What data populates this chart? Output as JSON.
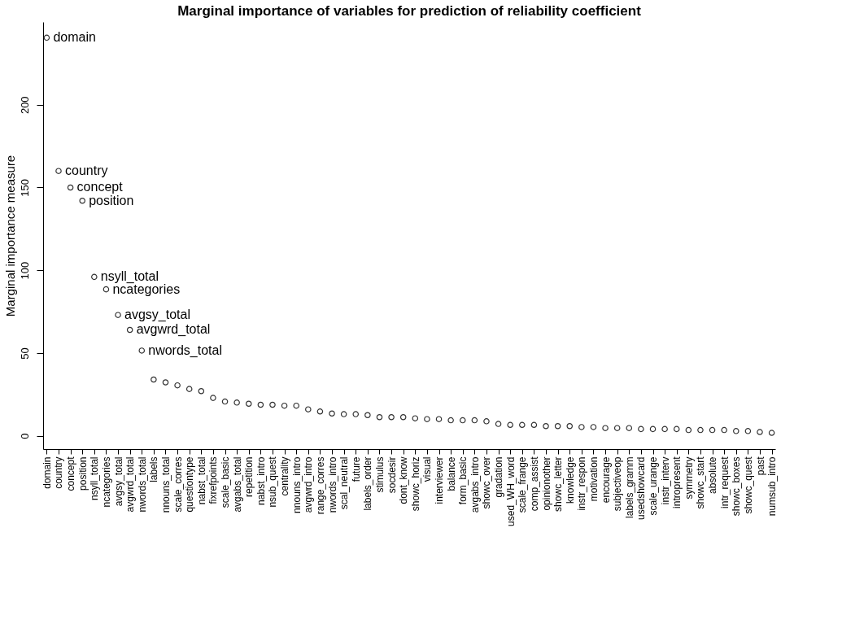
{
  "chart_data": {
    "type": "scatter",
    "title": "Marginal importance of variables for prediction of reliability coefficient",
    "ylabel": "Marginal importance measure",
    "categories": [
      "domain",
      "country",
      "concept",
      "position",
      "nsyll_total",
      "ncategories",
      "avgsy_total",
      "avgwrd_total",
      "nwords_total",
      "labels",
      "nnouns_total",
      "scale_corres",
      "questiontype",
      "nabst_total",
      "fixrefpoints",
      "scale_basic",
      "avgabs_total",
      "repetition",
      "nabst_intro",
      "nsub_quest",
      "centrality",
      "nnouns_intro",
      "avgwrd_intro",
      "range_corres",
      "nwords_intro",
      "scal_neutral",
      "future",
      "labels_order",
      "stimulus",
      "socdesir",
      "dont_know",
      "showc_horiz",
      "visual",
      "interviewer",
      "balance",
      "form_basic",
      "avgabs_intro",
      "showc_over",
      "gradation",
      "used_WH_word",
      "scale_frange",
      "comp_assist",
      "opinionother",
      "showc_letter",
      "knowledge",
      "instr_respon",
      "motivation",
      "encourage",
      "subjectiveop",
      "labels_gramm",
      "usedshowcard",
      "scale_urange",
      "instr_interv",
      "intropresent",
      "symmetry",
      "showc_start",
      "absolute",
      "intr_request",
      "showc_boxes",
      "showc_quest",
      "past",
      "numsub_intro"
    ],
    "series": [
      {
        "color": "#333333",
        "values": [
          240.5,
          160,
          150,
          142,
          96,
          88.5,
          73,
          64,
          51.5,
          34,
          32.3,
          30.5,
          28.3,
          27,
          22.9,
          20.7,
          20.1,
          19.4,
          18.8,
          18.8,
          18.2,
          18.2,
          16,
          14.7,
          13.5,
          13.1,
          13.1,
          12.5,
          11.3,
          11.3,
          11.3,
          10.6,
          10.1,
          10.1,
          9.4,
          9.4,
          9.4,
          8.8,
          7.2,
          6.6,
          6.6,
          6.6,
          5.9,
          5.9,
          5.9,
          5.3,
          5.3,
          4.7,
          4.7,
          4.7,
          4.1,
          4.1,
          4.1,
          4.1,
          3.5,
          3.5,
          3.5,
          3.5,
          2.9,
          2.9,
          2.3,
          1.8
        ]
      }
    ],
    "annotations": [
      {
        "text": "domain",
        "x": "domain",
        "y": 240.5
      },
      {
        "text": "country",
        "x": "country",
        "y": 160
      },
      {
        "text": "concept",
        "x": "concept",
        "y": 150
      },
      {
        "text": "position",
        "x": "position",
        "y": 142
      },
      {
        "text": "nsyll_total",
        "x": "nsyll_total",
        "y": 96
      },
      {
        "text": "ncategories",
        "x": "ncategories",
        "y": 88.5
      },
      {
        "text": "avgsy_total",
        "x": "avgsy_total",
        "y": 73
      },
      {
        "text": "avgwrd_total",
        "x": "avgwrd_total",
        "y": 64
      },
      {
        "text": "nwords_total",
        "x": "nwords_total",
        "y": 51.5
      }
    ],
    "ylim": [
      -8,
      250
    ],
    "yticks": [
      0,
      50,
      100,
      150,
      200
    ],
    "grid": false,
    "marker": "circle"
  }
}
